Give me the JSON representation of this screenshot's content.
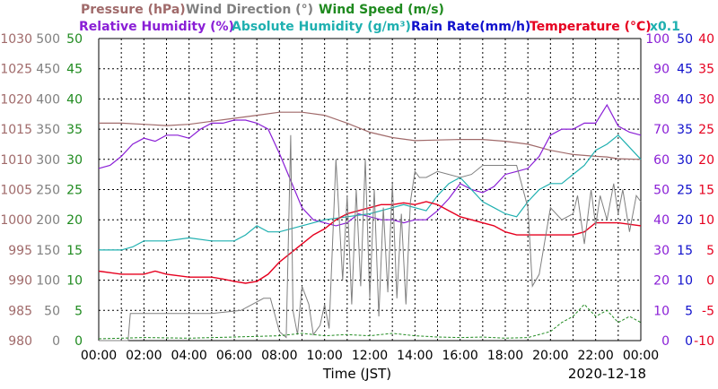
{
  "chart_data": {
    "type": "line",
    "legend_row1": [
      {
        "text": "Pressure (hPa)",
        "color": "#a06a6a"
      },
      {
        "text": "Wind Direction (°)",
        "color": "#808080"
      },
      {
        "text": "Wind Speed (m/s)",
        "color": "#1f8a1f"
      }
    ],
    "legend_row2": [
      {
        "text": "Relative Humidity (%)",
        "color": "#8a1fd6"
      },
      {
        "text": "Absolute Humidity (g/m³)",
        "color": "#1fb0b0"
      },
      {
        "text": "Rain Rate(mm/h)",
        "color": "#1010cc"
      },
      {
        "text": "Temperature (°C)",
        "color": "#e6001f"
      }
    ],
    "abs_humidity_scale_note": "x0.1",
    "xlabel": "Time (JST)",
    "date": "2020-12-18",
    "x_ticks": [
      "00:00",
      "02:00",
      "04:00",
      "06:00",
      "08:00",
      "10:00",
      "12:00",
      "14:00",
      "16:00",
      "18:00",
      "20:00",
      "22:00",
      "00:00"
    ],
    "axes": {
      "pressure": {
        "ticks": [
          "1030",
          "1025",
          "1020",
          "1015",
          "1010",
          "1005",
          "1000",
          "995",
          "990",
          "985",
          "980"
        ],
        "range": [
          980,
          1030
        ],
        "color": "#a06a6a"
      },
      "wind_direction": {
        "ticks": [
          "500",
          "450",
          "400",
          "350",
          "300",
          "250",
          "200",
          "150",
          "100",
          "50",
          "0"
        ],
        "range": [
          0,
          500
        ],
        "color": "#808080"
      },
      "wind_speed": {
        "ticks": [
          "50",
          "45",
          "40",
          "35",
          "30",
          "25",
          "20",
          "15",
          "10",
          "5",
          "0"
        ],
        "range": [
          0,
          50
        ],
        "color": "#1f8a1f"
      },
      "humidity": {
        "ticks": [
          "100",
          "90",
          "80",
          "70",
          "60",
          "50",
          "40",
          "30",
          "20",
          "10",
          "0"
        ],
        "range": [
          0,
          100
        ],
        "color": "#8a1fd6"
      },
      "rain_rate": {
        "ticks": [
          "50",
          "45",
          "40",
          "35",
          "30",
          "25",
          "20",
          "15",
          "10",
          "5",
          "0"
        ],
        "range": [
          0,
          50
        ],
        "color": "#1010cc"
      },
      "temperature": {
        "ticks": [
          "40",
          "35",
          "30",
          "25",
          "20",
          "15",
          "10",
          "5",
          "0",
          "-5",
          "-10"
        ],
        "range": [
          -10,
          40
        ],
        "color": "#e6001f"
      }
    },
    "x_range_hours": [
      0,
      24
    ],
    "series": [
      {
        "name": "Pressure (hPa)",
        "axis": "pressure",
        "color": "#a06a6a",
        "x": [
          0,
          1,
          2,
          3,
          4,
          5,
          6,
          7,
          8,
          9,
          10,
          11,
          12,
          13,
          14,
          15,
          16,
          17,
          18,
          19,
          20,
          21,
          22,
          22.5,
          23,
          24
        ],
        "y": [
          1016,
          1016,
          1015.8,
          1015.6,
          1015.8,
          1016.3,
          1016.8,
          1017.3,
          1017.8,
          1017.8,
          1017.3,
          1016,
          1014.5,
          1013.6,
          1013.1,
          1013.2,
          1013.3,
          1013.3,
          1013,
          1012.5,
          1011.5,
          1010.8,
          1010.5,
          1010.4,
          1010.1,
          1010
        ]
      },
      {
        "name": "Relative Humidity (%)",
        "axis": "humidity",
        "color": "#8a1fd6",
        "x": [
          0,
          0.5,
          1,
          1.5,
          2,
          2.5,
          3,
          3.5,
          4,
          4.5,
          5,
          5.5,
          6,
          6.5,
          7,
          7.5,
          8,
          8.5,
          9,
          9.5,
          10,
          10.5,
          11,
          11.5,
          12,
          12.5,
          13,
          13.5,
          14,
          14.5,
          15,
          15.5,
          16,
          16.5,
          17,
          17.5,
          18,
          18.5,
          19,
          19.5,
          20,
          20.5,
          21,
          21.5,
          22,
          22.5,
          23,
          23.5,
          24
        ],
        "y": [
          57,
          58,
          61,
          65,
          67,
          66,
          68,
          68,
          67,
          70,
          72,
          72,
          73,
          73,
          72,
          70,
          62,
          53,
          44,
          40,
          39,
          38,
          39,
          42,
          41,
          40,
          40,
          39,
          40,
          40,
          43,
          47,
          52,
          50,
          49,
          51,
          55,
          56,
          57,
          61,
          68,
          70,
          70,
          72,
          72,
          78,
          71,
          69,
          68
        ]
      },
      {
        "name": "Absolute Humidity (g/m³)",
        "axis": "humidity",
        "color": "#1fb0b0",
        "x": [
          0,
          0.5,
          1,
          1.5,
          2,
          3,
          4,
          5,
          6,
          6.5,
          7,
          7.5,
          8,
          8.5,
          9,
          9.5,
          10,
          11,
          12,
          12.5,
          13,
          13.5,
          14,
          14.5,
          15,
          15.5,
          16,
          16.5,
          17,
          17.5,
          18,
          18.5,
          19,
          19.5,
          20,
          20.5,
          21,
          21.5,
          22,
          22.5,
          23,
          23.5,
          24
        ],
        "y": [
          30,
          30,
          30,
          31,
          33,
          33,
          34,
          33,
          33,
          35,
          38,
          36,
          36,
          37,
          38,
          39,
          40,
          41,
          42,
          43,
          44,
          45,
          44,
          43,
          48,
          52,
          54,
          50,
          46,
          44,
          42,
          41,
          46,
          50,
          52,
          52,
          55,
          58,
          63,
          65,
          68,
          64,
          60
        ]
      },
      {
        "name": "Temperature (°C)",
        "axis": "temperature",
        "color": "#e6001f",
        "x": [
          0,
          1,
          2,
          2.5,
          3,
          4,
          5,
          5.5,
          6,
          6.5,
          7,
          7.5,
          8,
          8.5,
          9,
          9.5,
          10,
          10.5,
          11,
          11.5,
          12,
          12.5,
          13,
          13.5,
          14,
          14.5,
          15,
          15.5,
          16,
          16.5,
          17,
          17.5,
          18,
          18.5,
          19,
          19.5,
          20,
          20.5,
          21,
          21.5,
          22,
          23,
          24
        ],
        "y": [
          1.5,
          1,
          1,
          1.5,
          1,
          0.5,
          0.5,
          0.2,
          -0.2,
          -0.5,
          -0.2,
          1,
          3,
          4.5,
          6,
          7.5,
          8.5,
          10,
          11,
          11.5,
          12,
          12.5,
          12.5,
          12.8,
          12.5,
          13,
          12.5,
          11.5,
          10.5,
          10,
          9.5,
          9,
          8,
          7.5,
          7.5,
          7.5,
          7.5,
          7.5,
          7.5,
          8,
          9.5,
          9.5,
          9
        ]
      },
      {
        "name": "Wind Direction (°)",
        "axis": "wind_direction",
        "color": "#808080",
        "x": [
          0,
          1.3,
          1.4,
          5,
          6.3,
          7.3,
          7.6,
          8,
          8.3,
          8.5,
          8.6,
          8.8,
          9,
          9.3,
          9.5,
          9.8,
          10,
          10.2,
          10.5,
          10.8,
          11,
          11.2,
          11.4,
          11.6,
          11.8,
          12,
          12.2,
          12.4,
          12.6,
          12.8,
          13,
          13.2,
          13.4,
          13.6,
          13.8,
          14,
          14.2,
          14.5,
          15,
          15.5,
          16,
          16.5,
          17,
          17.5,
          18,
          18.5,
          19,
          19.2,
          19.5,
          20,
          20.5,
          21,
          21.2,
          21.5,
          21.8,
          22,
          22.2,
          22.5,
          22.8,
          23,
          23.2,
          23.5,
          23.8,
          24
        ],
        "y": [
          0,
          0,
          45,
          45,
          50,
          70,
          70,
          15,
          5,
          340,
          50,
          10,
          90,
          60,
          10,
          25,
          60,
          20,
          300,
          100,
          240,
          60,
          250,
          90,
          300,
          70,
          250,
          40,
          220,
          80,
          260,
          70,
          210,
          60,
          230,
          280,
          270,
          270,
          280,
          275,
          270,
          275,
          290,
          290,
          290,
          290,
          220,
          90,
          110,
          220,
          200,
          210,
          240,
          160,
          250,
          190,
          240,
          200,
          260,
          210,
          250,
          180,
          240,
          230
        ]
      },
      {
        "name": "Wind Speed (m/s)",
        "axis": "wind_speed",
        "color": "#1f8a1f",
        "x": [
          0,
          2,
          4,
          6,
          8,
          9,
          10,
          11,
          12,
          13,
          14,
          15,
          16,
          17,
          18,
          19,
          20,
          20.5,
          21,
          21.5,
          22,
          22.5,
          23,
          23.5,
          24
        ],
        "y": [
          0.3,
          0.5,
          0.4,
          0.6,
          0.8,
          1.2,
          0.8,
          1,
          0.8,
          1.2,
          0.8,
          0.6,
          0.5,
          0.6,
          0.4,
          0.5,
          1.5,
          3,
          4,
          6,
          4,
          5,
          3,
          4,
          3
        ]
      }
    ]
  }
}
